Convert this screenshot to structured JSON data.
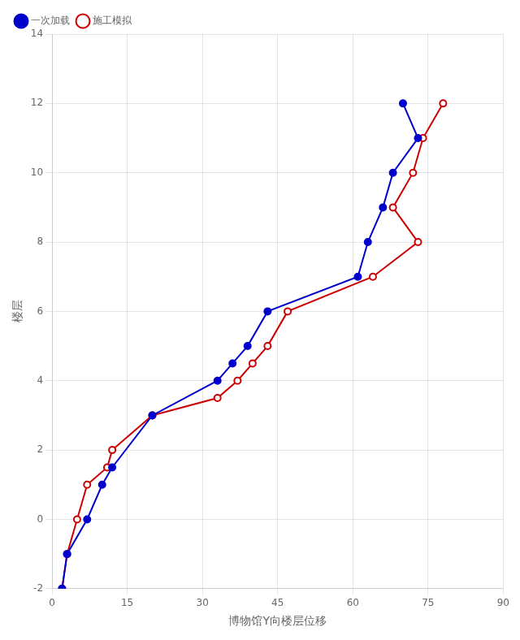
{
  "chart_data": {
    "type": "line",
    "xlabel": "博物馆Y向楼层位移",
    "ylabel": "楼层",
    "xlim": [
      0,
      90
    ],
    "ylim": [
      -2,
      14
    ],
    "xticks": [
      0,
      15,
      30,
      45,
      60,
      75,
      90
    ],
    "yticks": [
      -2,
      0,
      2,
      4,
      6,
      8,
      10,
      12,
      14
    ],
    "grid": true,
    "legend": "upper left",
    "series": [
      {
        "name": "一次加载",
        "color": "#0000CC",
        "marker": "filled_circle",
        "x": [
          2,
          3,
          7,
          10,
          12,
          20,
          33,
          36,
          39,
          43,
          61,
          63,
          66,
          68,
          73,
          70
        ],
        "values": [
          -2,
          -1,
          0,
          1,
          1.5,
          3,
          4,
          4.5,
          5,
          6,
          7,
          8,
          9,
          10,
          11,
          12
        ]
      },
      {
        "name": "施工模拟",
        "color": "#CC0000",
        "marker": "open_circle",
        "x": [
          2,
          3,
          5,
          7,
          11,
          12,
          20,
          33,
          37,
          40,
          43,
          47,
          64,
          73,
          68,
          72,
          74,
          78
        ],
        "values": [
          -2,
          -1,
          0,
          1,
          1.5,
          2,
          3,
          3.5,
          4,
          4.5,
          5,
          6,
          7,
          8,
          9,
          10,
          11,
          12
        ]
      }
    ]
  }
}
